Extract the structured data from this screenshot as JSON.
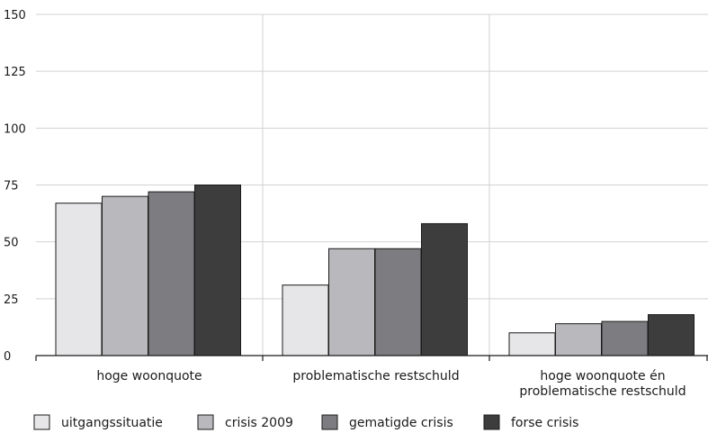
{
  "chart_data": {
    "type": "bar",
    "title": "",
    "xlabel": "",
    "ylabel": "",
    "ylim": [
      0,
      150
    ],
    "yticks": [
      0,
      25,
      50,
      75,
      100,
      125,
      150
    ],
    "grid": "vertical group separators",
    "legend_position": "bottom",
    "categories": [
      [
        "hoge woonquote"
      ],
      [
        "problematische restschuld"
      ],
      [
        "hoge woonquote én",
        "problematische restschuld"
      ]
    ],
    "series": [
      {
        "name": "uitgangssituatie",
        "color": "#e6e6e8",
        "values": [
          67,
          31,
          10
        ]
      },
      {
        "name": "crisis 2009",
        "color": "#b9b9bd",
        "values": [
          70,
          47,
          14
        ]
      },
      {
        "name": "gematigde crisis",
        "color": "#7d7d81",
        "values": [
          72,
          47,
          15
        ]
      },
      {
        "name": "forse crisis",
        "color": "#3d3d3d",
        "values": [
          75,
          58,
          18
        ]
      }
    ]
  }
}
